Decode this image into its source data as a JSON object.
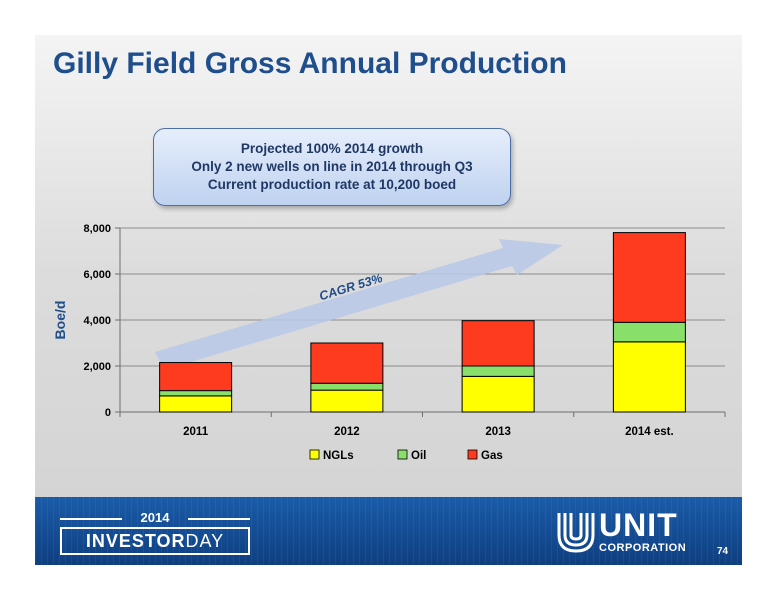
{
  "slide": {
    "title": "Gilly Field Gross Annual Production",
    "callout_lines": [
      "Projected 100% 2014 growth",
      "Only 2 new wells on line in 2014 through Q3",
      "Current production rate at 10,200 boed"
    ],
    "page_number": "74"
  },
  "footer": {
    "investor_year": "2014",
    "investor_word1": "INVESTOR",
    "investor_word2": "DAY",
    "company_name": "UNIT",
    "company_sub": "CORPORATION"
  },
  "chart_data": {
    "type": "bar",
    "stacked": true,
    "categories": [
      "2011",
      "2012",
      "2013",
      "2014 est."
    ],
    "series": [
      {
        "name": "NGLs",
        "color": "#ffff00",
        "values": [
          700,
          950,
          1550,
          3050
        ]
      },
      {
        "name": "Oil",
        "color": "#88e06a",
        "values": [
          230,
          300,
          450,
          850
        ]
      },
      {
        "name": "Gas",
        "color": "#ff3b1f",
        "values": [
          1220,
          1750,
          1970,
          3900
        ]
      }
    ],
    "ylabel": "Boe/d",
    "xlabel": "",
    "ylim": [
      0,
      8000
    ],
    "yticks": [
      0,
      2000,
      4000,
      6000,
      8000
    ],
    "ytick_labels": [
      "0",
      "2,000",
      "4,000",
      "6,000",
      "8,000"
    ],
    "grid": true,
    "legend": "bottom",
    "annotation": {
      "text": "CAGR 53%",
      "arrow_color": "#b8c8e8"
    }
  }
}
